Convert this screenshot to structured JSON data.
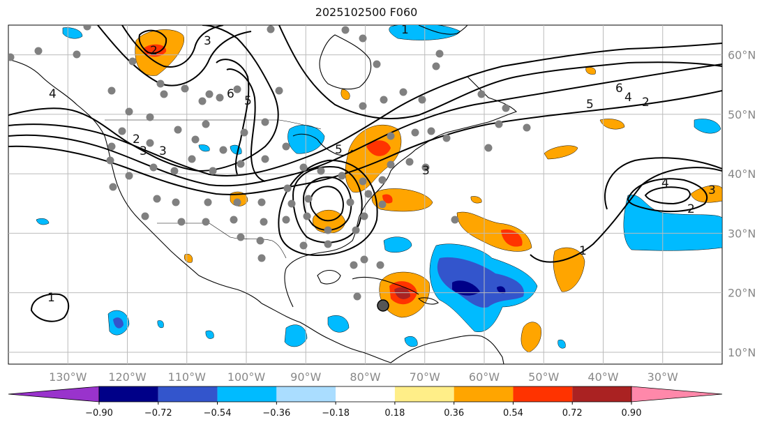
{
  "title": "2025102500 F060",
  "colors": {
    "land_fill": "#ffffff",
    "coast": "#000000",
    "grid": "#bbbbbb",
    "station": "#808080",
    "contour": "#000000"
  },
  "latitude_labels": [
    "60°N",
    "50°N",
    "40°N",
    "30°N",
    "20°N",
    "10°N"
  ],
  "longitude_labels": [
    "130°W",
    "120°W",
    "110°W",
    "100°W",
    "90°W",
    "80°W",
    "70°W",
    "60°W",
    "50°W",
    "40°W",
    "30°W"
  ],
  "colorbar": {
    "colors": [
      "#9933cc",
      "#000088",
      "#3355cc",
      "#00bbff",
      "#aaddff",
      "#ffffff",
      "#ffee88",
      "#ffa500",
      "#ff3300",
      "#aa2222",
      "#ff88aa"
    ],
    "tick_labels": [
      "−0.90",
      "−0.72",
      "−0.54",
      "−0.36",
      "−0.18",
      "0.18",
      "0.36",
      "0.54",
      "0.72",
      "0.90"
    ]
  },
  "contour_labels": [
    "3",
    "3",
    "3",
    "5",
    "6",
    "5",
    "4",
    "2",
    "1",
    "4",
    "2",
    "4",
    "6",
    "5",
    "3",
    "3",
    "1",
    "1",
    "2",
    "2"
  ],
  "chart_data": {
    "type": "map",
    "projection": "plate carree",
    "lon_range": [
      -140,
      -20
    ],
    "lat_range": [
      8,
      65
    ],
    "grid": true,
    "legend_placement": "bottom colorbar",
    "colorbar_levels": [
      -0.9,
      -0.72,
      -0.54,
      -0.36,
      -0.18,
      0.18,
      0.36,
      0.54,
      0.72,
      0.9
    ]
  }
}
